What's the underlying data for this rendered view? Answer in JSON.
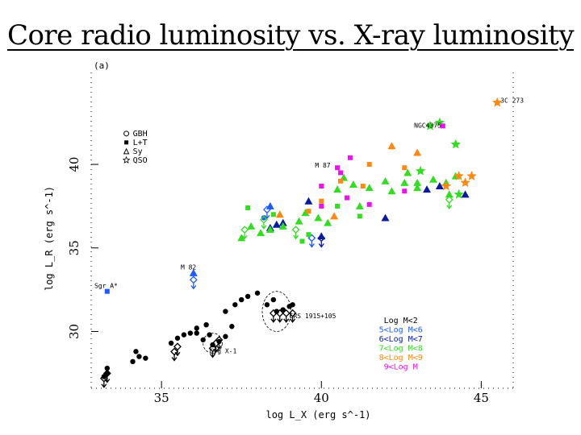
{
  "slide": {
    "title": "Core radio luminosity vs. X-ray luminosity"
  },
  "colors": {
    "black": "#000000",
    "blue_light": "#1e5aff",
    "blue_dark": "#0a1aa0",
    "green": "#33dd22",
    "orange": "#ff8811",
    "magenta": "#ee11ee"
  },
  "chart_data": {
    "type": "scatter",
    "panel_label": "(a)",
    "xlabel": "log L_X (erg s^-1)",
    "ylabel": "log L_R (erg s^-1)",
    "xlim": [
      32.8,
      46.0
    ],
    "ylim": [
      26.6,
      45.5
    ],
    "xticks": [
      35,
      40,
      45
    ],
    "yticks": [
      30,
      35,
      40
    ],
    "grid": false,
    "marker_legend": {
      "position": "top-left",
      "items": [
        {
          "marker": "circle",
          "label": "GBH"
        },
        {
          "marker": "square",
          "label": "L+T"
        },
        {
          "marker": "triangle",
          "label": "Sy"
        },
        {
          "marker": "star",
          "label": "QSO"
        }
      ]
    },
    "mass_legend": {
      "position": "bottom-right",
      "items": [
        {
          "label": "Log M<2",
          "color": "#000000"
        },
        {
          "label": "5<Log M<6",
          "color": "#1e5aff"
        },
        {
          "label": "6<Log M<7",
          "color": "#0a1aa0"
        },
        {
          "label": "7<Log M<8",
          "color": "#33dd22"
        },
        {
          "label": "8<Log M<9",
          "color": "#ff8811"
        },
        {
          "label": "9<Log M",
          "color": "#ee11ee"
        }
      ]
    },
    "annotations": [
      {
        "text": "NGC4375",
        "x": 42.9,
        "y": 42.2
      },
      {
        "text": "3C 273",
        "x": 45.6,
        "y": 43.7
      },
      {
        "text": "M 87",
        "x": 39.8,
        "y": 39.8
      },
      {
        "text": "M 82",
        "x": 35.6,
        "y": 33.7
      },
      {
        "text": "Sgr A*",
        "x": 32.9,
        "y": 32.6
      },
      {
        "text": "GRS 1915+105",
        "x": 39.0,
        "y": 30.8
      },
      {
        "text": "Cyg X-1",
        "x": 36.5,
        "y": 28.7
      }
    ],
    "circled": [
      {
        "x": 38.6,
        "y": 31.2,
        "rx": 0.45,
        "ry": 1.2
      },
      {
        "x": 36.6,
        "y": 29.3,
        "rx": 0.3,
        "ry": 0.6
      }
    ],
    "series": [
      {
        "name": "GBH",
        "marker": "circle",
        "color": "#000000",
        "points": [
          [
            33.2,
            27.3
          ],
          [
            33.3,
            27.5
          ],
          [
            33.3,
            27.8
          ],
          [
            34.1,
            28.2
          ],
          [
            34.3,
            28.5
          ],
          [
            34.5,
            28.4
          ],
          [
            34.2,
            28.8
          ],
          [
            35.3,
            29.3
          ],
          [
            35.5,
            29.6
          ],
          [
            35.7,
            29.8
          ],
          [
            35.9,
            29.9
          ],
          [
            36.1,
            29.9
          ],
          [
            36.3,
            29.5
          ],
          [
            36.5,
            29.8
          ],
          [
            36.6,
            29.2
          ],
          [
            36.8,
            29.4
          ],
          [
            37.0,
            29.7
          ],
          [
            36.1,
            30.2
          ],
          [
            36.4,
            30.4
          ],
          [
            37.2,
            30.3
          ],
          [
            37.0,
            31.2
          ],
          [
            37.3,
            31.6
          ],
          [
            37.5,
            31.9
          ],
          [
            37.7,
            32.1
          ],
          [
            38.0,
            32.3
          ],
          [
            38.3,
            31.6
          ],
          [
            38.5,
            31.9
          ],
          [
            38.6,
            31.2
          ],
          [
            38.8,
            31.3
          ],
          [
            39.0,
            31.5
          ],
          [
            39.1,
            31.6
          ]
        ],
        "limits": [
          [
            33.2,
            27.0
          ],
          [
            33.3,
            27.3
          ],
          [
            35.4,
            28.6
          ],
          [
            35.5,
            28.9
          ],
          [
            36.6,
            28.8
          ],
          [
            36.7,
            29.1
          ],
          [
            36.8,
            29.3
          ],
          [
            38.5,
            30.9
          ],
          [
            38.7,
            30.9
          ],
          [
            38.9,
            30.9
          ],
          [
            39.1,
            30.9
          ]
        ]
      },
      {
        "name": "5<Log M<6",
        "marker": "mixed",
        "color": "#1e5aff",
        "points": [
          [
            33.3,
            32.4,
            "square"
          ],
          [
            36.0,
            33.5,
            "triangle"
          ],
          [
            38.4,
            37.5,
            "triangle"
          ],
          [
            38.2,
            36.8,
            "circle"
          ]
        ],
        "limits": [
          [
            36.0,
            32.9
          ],
          [
            39.7,
            35.4
          ],
          [
            38.3,
            37.1
          ]
        ]
      },
      {
        "name": "6<Log M<7",
        "marker": "mixed",
        "color": "#0a1aa0",
        "points": [
          [
            38.4,
            36.2,
            "triangle"
          ],
          [
            38.6,
            36.4,
            "triangle"
          ],
          [
            38.8,
            36.5,
            "triangle"
          ],
          [
            39.6,
            37.8,
            "triangle"
          ],
          [
            40.0,
            35.7,
            "triangle"
          ],
          [
            42.0,
            36.8,
            "triangle"
          ],
          [
            43.3,
            38.5,
            "triangle"
          ],
          [
            43.7,
            38.7,
            "triangle"
          ],
          [
            44.5,
            38.2,
            "triangle"
          ]
        ],
        "limits": [
          [
            40.0,
            35.4
          ]
        ]
      },
      {
        "name": "7<Log M<8",
        "marker": "mixed",
        "color": "#33dd22",
        "points": [
          [
            37.5,
            35.6,
            "triangle"
          ],
          [
            37.8,
            36.3,
            "triangle"
          ],
          [
            38.1,
            35.9,
            "triangle"
          ],
          [
            38.4,
            36.1,
            "triangle"
          ],
          [
            38.8,
            36.3,
            "triangle"
          ],
          [
            39.3,
            36.6,
            "triangle"
          ],
          [
            39.5,
            37.1,
            "triangle"
          ],
          [
            39.9,
            36.8,
            "triangle"
          ],
          [
            40.2,
            36.5,
            "triangle"
          ],
          [
            40.5,
            38.5,
            "triangle"
          ],
          [
            40.7,
            39.2,
            "triangle"
          ],
          [
            41.0,
            38.8,
            "triangle"
          ],
          [
            41.2,
            37.5,
            "triangle"
          ],
          [
            41.5,
            38.6,
            "triangle"
          ],
          [
            42.0,
            39.0,
            "triangle"
          ],
          [
            42.2,
            38.4,
            "triangle"
          ],
          [
            42.6,
            38.9,
            "triangle"
          ],
          [
            43.0,
            38.6,
            "triangle"
          ],
          [
            43.5,
            39.1,
            "triangle"
          ],
          [
            43.9,
            38.9,
            "triangle"
          ],
          [
            44.2,
            39.3,
            "triangle"
          ],
          [
            44.0,
            38.2,
            "triangle"
          ],
          [
            43.0,
            38.9,
            "triangle"
          ],
          [
            42.7,
            39.5,
            "triangle"
          ],
          [
            37.7,
            37.4,
            "square"
          ],
          [
            38.5,
            37.0,
            "square"
          ],
          [
            39.4,
            35.4,
            "square"
          ],
          [
            39.6,
            35.8,
            "square"
          ],
          [
            40.5,
            37.5,
            "square"
          ],
          [
            41.2,
            36.9,
            "square"
          ],
          [
            43.4,
            42.3,
            "star"
          ],
          [
            43.7,
            42.5,
            "star"
          ],
          [
            44.2,
            41.2,
            "star"
          ],
          [
            43.1,
            39.6,
            "star"
          ],
          [
            44.3,
            38.2,
            "star"
          ]
        ],
        "limits": [
          [
            37.6,
            35.9
          ],
          [
            38.2,
            36.5
          ],
          [
            39.2,
            35.9
          ],
          [
            44.0,
            37.7
          ]
        ]
      },
      {
        "name": "8<Log M<9",
        "marker": "mixed",
        "color": "#ff8811",
        "points": [
          [
            38.7,
            37.0,
            "triangle"
          ],
          [
            40.4,
            36.9,
            "triangle"
          ],
          [
            42.2,
            41.1,
            "triangle"
          ],
          [
            43.0,
            40.7,
            "triangle"
          ],
          [
            45.5,
            43.7,
            "star"
          ],
          [
            44.3,
            39.3,
            "star"
          ],
          [
            44.5,
            38.9,
            "star"
          ],
          [
            44.7,
            39.3,
            "star"
          ],
          [
            43.9,
            38.7,
            "star"
          ],
          [
            39.6,
            37.2,
            "square"
          ],
          [
            40.0,
            37.8,
            "square"
          ],
          [
            40.6,
            39.0,
            "square"
          ],
          [
            41.3,
            38.7,
            "square"
          ],
          [
            41.5,
            40.0,
            "square"
          ],
          [
            42.6,
            39.8,
            "square"
          ]
        ],
        "limits": []
      },
      {
        "name": "9<Log M",
        "marker": "mixed",
        "color": "#ee11ee",
        "points": [
          [
            40.5,
            39.8,
            "square"
          ],
          [
            40.6,
            39.5,
            "square"
          ],
          [
            40.0,
            38.7,
            "square"
          ],
          [
            40.0,
            37.5,
            "square"
          ],
          [
            40.8,
            38.0,
            "square"
          ],
          [
            41.5,
            37.6,
            "square"
          ],
          [
            42.6,
            38.4,
            "square"
          ],
          [
            43.8,
            42.3,
            "square"
          ],
          [
            40.9,
            40.4,
            "square"
          ]
        ],
        "limits": []
      }
    ]
  }
}
